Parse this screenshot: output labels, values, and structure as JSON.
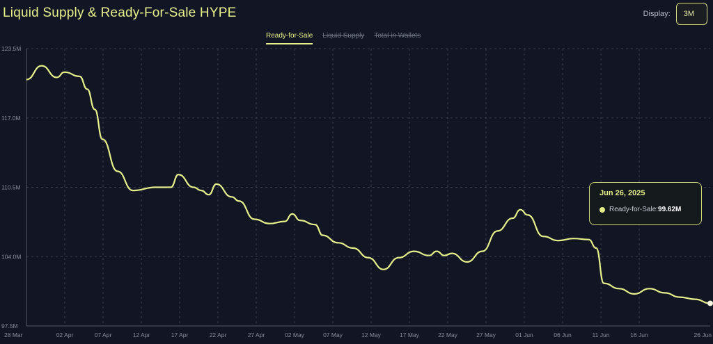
{
  "header": {
    "title": "Liquid Supply & Ready-For-Sale HYPE"
  },
  "display": {
    "label": "Display:",
    "value": "3M"
  },
  "tabs": [
    {
      "label": "Ready-for-Sale",
      "active": true
    },
    {
      "label": "Liquid Supply",
      "active": false
    },
    {
      "label": "Total in Wallets",
      "active": false
    }
  ],
  "tooltip": {
    "date": "Jun 26, 2025",
    "series_label": "Ready-for-Sale:",
    "value": "99.62M"
  },
  "colors": {
    "background": "#121624",
    "line": "#e6f08a",
    "grid": "#3a3f4d",
    "axis_text": "#8a8f9c"
  },
  "chart_data": {
    "type": "line",
    "title": "Liquid Supply & Ready-For-Sale HYPE",
    "y_ticks": [
      "97.5M",
      "104.0M",
      "110.5M",
      "117.0M",
      "123.5M"
    ],
    "x_ticks": [
      "28 Mar",
      "02 Apr",
      "07 Apr",
      "12 Apr",
      "17 Apr",
      "22 Apr",
      "27 Apr",
      "02 May",
      "07 May",
      "12 May",
      "17 May",
      "22 May",
      "27 May",
      "01 Jun",
      "06 Jun",
      "11 Jun",
      "16 Jun",
      "26 Jun"
    ],
    "ylim": [
      97.5,
      123.5
    ],
    "grid": true,
    "series": [
      {
        "name": "Ready-for-Sale",
        "x": [
          "2025-03-28",
          "2025-03-30",
          "2025-04-01",
          "2025-04-02",
          "2025-04-04",
          "2025-04-05",
          "2025-04-06",
          "2025-04-07",
          "2025-04-09",
          "2025-04-11",
          "2025-04-14",
          "2025-04-16",
          "2025-04-17",
          "2025-04-19",
          "2025-04-20",
          "2025-04-21",
          "2025-04-22",
          "2025-04-24",
          "2025-04-25",
          "2025-04-27",
          "2025-04-29",
          "2025-05-01",
          "2025-05-02",
          "2025-05-03",
          "2025-05-05",
          "2025-05-06",
          "2025-05-08",
          "2025-05-10",
          "2025-05-12",
          "2025-05-14",
          "2025-05-16",
          "2025-05-18",
          "2025-05-20",
          "2025-05-21",
          "2025-05-22",
          "2025-05-23",
          "2025-05-25",
          "2025-05-27",
          "2025-05-29",
          "2025-05-31",
          "2025-06-01",
          "2025-06-02",
          "2025-06-04",
          "2025-06-06",
          "2025-06-08",
          "2025-06-10",
          "2025-06-11",
          "2025-06-12",
          "2025-06-14",
          "2025-06-16",
          "2025-06-18",
          "2025-06-20",
          "2025-06-22",
          "2025-06-24",
          "2025-06-26"
        ],
        "y": [
          120.6,
          121.9,
          120.8,
          121.3,
          120.9,
          119.7,
          117.8,
          115.0,
          112.0,
          110.2,
          110.5,
          110.5,
          111.7,
          110.5,
          110.2,
          109.8,
          110.8,
          109.6,
          109.2,
          107.5,
          107.1,
          107.3,
          108.0,
          107.4,
          107.0,
          106.0,
          105.3,
          104.8,
          103.9,
          102.8,
          103.9,
          104.5,
          104.1,
          104.5,
          104.1,
          104.3,
          103.5,
          104.5,
          106.4,
          107.6,
          108.4,
          107.9,
          105.9,
          105.5,
          105.7,
          105.6,
          104.8,
          101.5,
          101.0,
          100.5,
          101.0,
          100.6,
          100.2,
          100.0,
          99.62
        ]
      }
    ]
  }
}
